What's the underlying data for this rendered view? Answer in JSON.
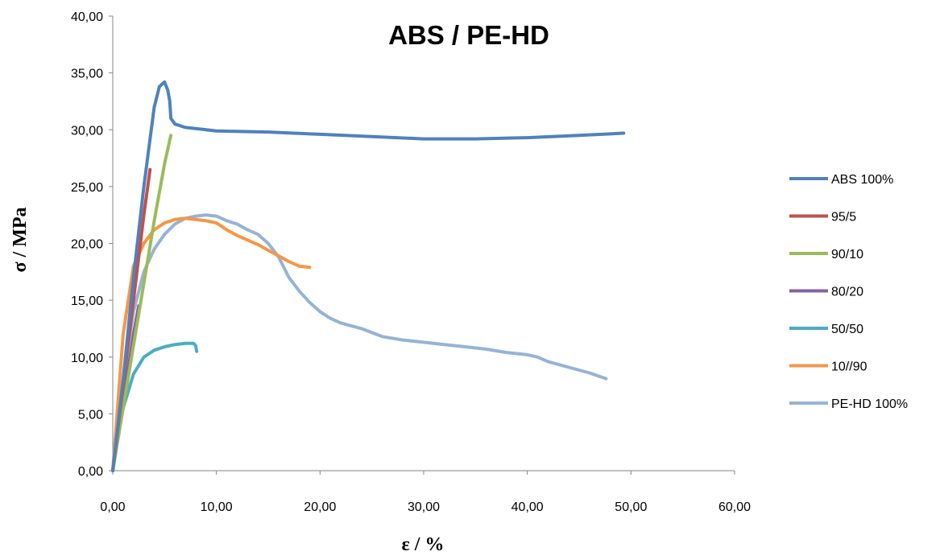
{
  "chart_data": {
    "type": "line",
    "title": "ABS / PE-HD",
    "xlabel": "ε / %",
    "ylabel": "σ / MPa",
    "xlim": [
      0,
      60
    ],
    "ylim": [
      0,
      40
    ],
    "x_ticks": [
      "0,00",
      "10,00",
      "20,00",
      "30,00",
      "40,00",
      "50,00",
      "60,00"
    ],
    "y_ticks": [
      "0,00",
      "5,00",
      "10,00",
      "15,00",
      "20,00",
      "25,00",
      "30,00",
      "35,00",
      "40,00"
    ],
    "grid": false,
    "legend_position": "right",
    "series": [
      {
        "name": "ABS 100%",
        "color": "#4f81bd",
        "x": [
          0,
          1,
          2,
          3,
          4,
          4.5,
          5,
          5.3,
          5.5,
          5.6,
          6,
          7,
          10,
          15,
          20,
          25,
          30,
          35,
          40,
          45,
          49.3
        ],
        "y": [
          0,
          8,
          17,
          25,
          32,
          33.8,
          34.2,
          33.5,
          32.5,
          31,
          30.5,
          30.2,
          29.9,
          29.8,
          29.6,
          29.4,
          29.2,
          29.2,
          29.3,
          29.5,
          29.7
        ]
      },
      {
        "name": "95/5",
        "color": "#c0504d",
        "x": [
          0,
          1,
          2,
          3,
          3.6
        ],
        "y": [
          0,
          7.5,
          15,
          22.5,
          26.5
        ]
      },
      {
        "name": "90/10",
        "color": "#9bbb59",
        "x": [
          0,
          1,
          2,
          3,
          4,
          5,
          5.6
        ],
        "y": [
          0,
          5.5,
          11,
          16.5,
          22,
          27,
          29.5
        ]
      },
      {
        "name": "80/20",
        "color": "#8064a2",
        "x": [
          0,
          1,
          2,
          2.5
        ],
        "y": [
          0,
          6,
          12,
          14.5
        ]
      },
      {
        "name": "50/50",
        "color": "#4bacc6",
        "x": [
          0,
          0.5,
          1,
          2,
          3,
          4,
          5,
          6,
          7,
          7.8,
          8,
          8.1
        ],
        "y": [
          0,
          3,
          5.5,
          8.5,
          10,
          10.6,
          10.9,
          11.1,
          11.2,
          11.2,
          11,
          10.5
        ]
      },
      {
        "name": "10//90",
        "color": "#f79646",
        "x": [
          0,
          1,
          2,
          3,
          4,
          5,
          6,
          7,
          8,
          9,
          10,
          11,
          12,
          13,
          14,
          15,
          16,
          17,
          18,
          19
        ],
        "y": [
          0,
          12,
          18,
          20,
          21.2,
          21.8,
          22.1,
          22.2,
          22.1,
          22,
          21.8,
          21.2,
          20.7,
          20.3,
          19.9,
          19.4,
          18.9,
          18.4,
          18,
          17.9
        ]
      },
      {
        "name": "PE-HD 100%",
        "color": "#95b3d7",
        "x": [
          0,
          1,
          2,
          3,
          4,
          5,
          6,
          7,
          8,
          9,
          10,
          11,
          12,
          13,
          14,
          15,
          16,
          17,
          18,
          19,
          20,
          21,
          22,
          24,
          26,
          28,
          30,
          32,
          34,
          36,
          38,
          40,
          41,
          42,
          44,
          46,
          47.6
        ],
        "y": [
          0,
          8,
          14,
          17.5,
          19.5,
          20.8,
          21.7,
          22.2,
          22.4,
          22.5,
          22.4,
          22,
          21.7,
          21.2,
          20.8,
          20,
          18.8,
          17,
          15.8,
          14.8,
          14,
          13.4,
          13,
          12.5,
          11.8,
          11.5,
          11.3,
          11.1,
          10.9,
          10.7,
          10.4,
          10.2,
          10,
          9.6,
          9.1,
          8.6,
          8.1
        ]
      }
    ]
  }
}
